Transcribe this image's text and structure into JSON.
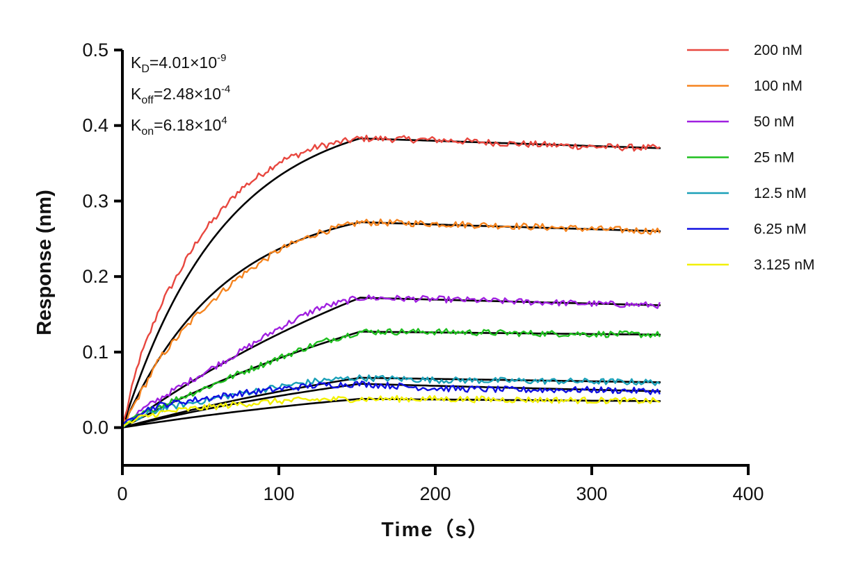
{
  "chart_data": {
    "type": "line",
    "xlabel": "Time（s）",
    "ylabel": "Response (nm)",
    "xlim": [
      0,
      400
    ],
    "ylim": [
      -0.05,
      0.5
    ],
    "x_ticks": [
      "0",
      "100",
      "200",
      "300",
      "400"
    ],
    "x_tick_values": [
      0,
      100,
      200,
      300,
      400
    ],
    "y_ticks": [
      "0.0",
      "0.1",
      "0.2",
      "0.3",
      "0.4",
      "0.5"
    ],
    "y_tick_values": [
      0,
      0.1,
      0.2,
      0.3,
      0.4,
      0.5
    ],
    "grid": false,
    "legend_position": "right",
    "association_end": 152,
    "dissociation_end": 344,
    "fit_color": "#000000",
    "annotations": [
      {
        "main": "K",
        "sub": "D",
        "rest": "=4.01×10",
        "sup": "-9"
      },
      {
        "main": "K",
        "sub": "off",
        "rest": "=2.48×10",
        "sup": "-4"
      },
      {
        "main": "K",
        "sub": "on",
        "rest": "=6.18×10",
        "sup": "4"
      }
    ],
    "series": [
      {
        "name": "200 nM",
        "color": "#e8473f",
        "x": [
          0,
          10,
          25,
          50,
          75,
          100,
          125,
          152,
          200,
          250,
          300,
          344
        ],
        "y": [
          0,
          0.085,
          0.165,
          0.255,
          0.315,
          0.352,
          0.372,
          0.383,
          0.381,
          0.376,
          0.372,
          0.37
        ]
      },
      {
        "name": "100 nM",
        "color": "#f5841f",
        "x": [
          0,
          10,
          25,
          50,
          75,
          100,
          125,
          152,
          200,
          250,
          300,
          344
        ],
        "y": [
          0,
          0.04,
          0.095,
          0.155,
          0.2,
          0.235,
          0.258,
          0.272,
          0.27,
          0.267,
          0.263,
          0.26
        ]
      },
      {
        "name": "50 nM",
        "color": "#a020e0",
        "x": [
          0,
          10,
          25,
          50,
          75,
          100,
          125,
          152,
          200,
          250,
          300,
          344
        ],
        "y": [
          0,
          0.02,
          0.04,
          0.07,
          0.1,
          0.132,
          0.158,
          0.172,
          0.17,
          0.167,
          0.164,
          0.162
        ]
      },
      {
        "name": "25 nM",
        "color": "#1fbf1f",
        "x": [
          0,
          10,
          25,
          50,
          75,
          100,
          125,
          152,
          200,
          250,
          300,
          344
        ],
        "y": [
          0,
          0.015,
          0.03,
          0.05,
          0.072,
          0.092,
          0.112,
          0.127,
          0.127,
          0.125,
          0.124,
          0.123
        ]
      },
      {
        "name": "12.5 nM",
        "color": "#1aa0b8",
        "x": [
          0,
          10,
          25,
          50,
          75,
          100,
          125,
          152,
          200,
          250,
          300,
          344
        ],
        "y": [
          0,
          0.012,
          0.025,
          0.035,
          0.045,
          0.054,
          0.062,
          0.066,
          0.063,
          0.062,
          0.061,
          0.06
        ]
      },
      {
        "name": "6.25 nM",
        "color": "#1010e0",
        "x": [
          0,
          10,
          25,
          50,
          75,
          100,
          125,
          152,
          200,
          250,
          300,
          344
        ],
        "y": [
          0,
          0.02,
          0.03,
          0.038,
          0.045,
          0.051,
          0.056,
          0.058,
          0.052,
          0.05,
          0.05,
          0.048
        ]
      },
      {
        "name": "3.125 nM",
        "color": "#f2f000",
        "x": [
          0,
          10,
          25,
          50,
          75,
          100,
          125,
          152,
          200,
          250,
          300,
          344
        ],
        "y": [
          0,
          0.012,
          0.02,
          0.026,
          0.031,
          0.035,
          0.037,
          0.038,
          0.038,
          0.037,
          0.036,
          0.035
        ]
      }
    ]
  }
}
